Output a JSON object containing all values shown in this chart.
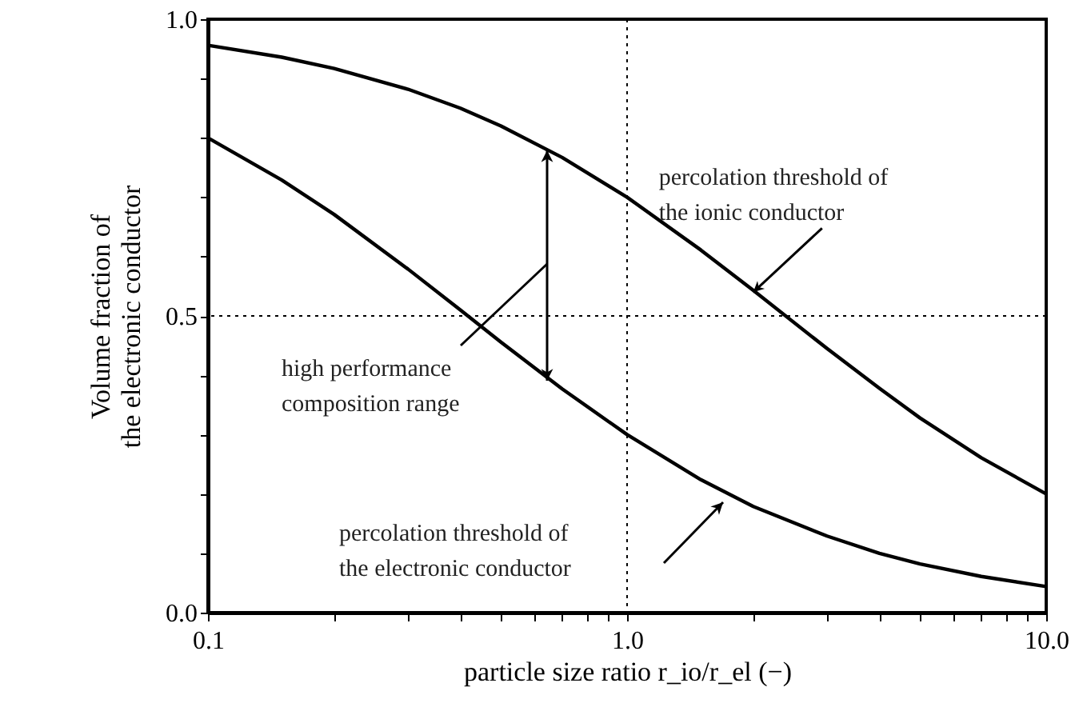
{
  "chart_data": {
    "type": "line",
    "xlabel": "particle size ratio r_io/r_el (−)",
    "ylabel": "Volume fraction of\nthe electronic conductor",
    "x": [
      0.1,
      0.15,
      0.2,
      0.3,
      0.4,
      0.5,
      0.7,
      1,
      1.5,
      2,
      3,
      4,
      5,
      7,
      10
    ],
    "series": [
      {
        "color": "#000000",
        "values": [
          0.956,
          0.936,
          0.917,
          0.882,
          0.85,
          0.82,
          0.767,
          0.7,
          0.611,
          0.543,
          0.445,
          0.378,
          0.328,
          0.261,
          0.2
        ]
      },
      {
        "color": "#000000",
        "values": [
          0.8,
          0.729,
          0.671,
          0.579,
          0.51,
          0.456,
          0.377,
          0.3,
          0.224,
          0.179,
          0.129,
          0.1,
          0.082,
          0.061,
          0.044
        ]
      }
    ],
    "log": "x",
    "xlim": [
      0.1,
      10
    ],
    "ylim": [
      0,
      1
    ],
    "xticks": [
      {
        "value": 0.1,
        "label": "0.1"
      },
      {
        "value": 0.2,
        "label": null
      },
      {
        "value": 0.3,
        "label": null
      },
      {
        "value": 0.4,
        "label": null
      },
      {
        "value": 0.5,
        "label": null
      },
      {
        "value": 0.6,
        "label": null
      },
      {
        "value": 0.7,
        "label": null
      },
      {
        "value": 0.8,
        "label": null
      },
      {
        "value": 0.9,
        "label": null
      },
      {
        "value": 1,
        "label": "1.0"
      },
      {
        "value": 2,
        "label": null
      },
      {
        "value": 3,
        "label": null
      },
      {
        "value": 4,
        "label": null
      },
      {
        "value": 5,
        "label": null
      },
      {
        "value": 6,
        "label": null
      },
      {
        "value": 7,
        "label": null
      },
      {
        "value": 8,
        "label": null
      },
      {
        "value": 9,
        "label": null
      },
      {
        "value": 10,
        "label": "10.0"
      }
    ],
    "yticks": [
      {
        "value": 0,
        "label": "0.0"
      },
      {
        "value": 0.1,
        "label": null
      },
      {
        "value": 0.2,
        "label": null
      },
      {
        "value": 0.3,
        "label": null
      },
      {
        "value": 0.4,
        "label": null
      },
      {
        "value": 0.5,
        "label": "0.5"
      },
      {
        "value": 0.6,
        "label": null
      },
      {
        "value": 0.7,
        "label": null
      },
      {
        "value": 0.8,
        "label": null
      },
      {
        "value": 0.9,
        "label": null
      },
      {
        "value": 1,
        "label": "1.0"
      }
    ],
    "ref_lines": [
      {
        "axis": "x",
        "value": 1,
        "line_style": "dotted"
      },
      {
        "axis": "y",
        "value": 0.5,
        "line_style": "dotted"
      }
    ],
    "annotations": [
      {
        "text": "percolation threshold of\nthe ionic conductor",
        "x": 2,
        "y": 0.54
      },
      "percolation threshold of\nthe electronic conductor",
      "high performance\ncomposition range"
    ],
    "grid": false,
    "marker": "none",
    "line_style": "solid"
  }
}
